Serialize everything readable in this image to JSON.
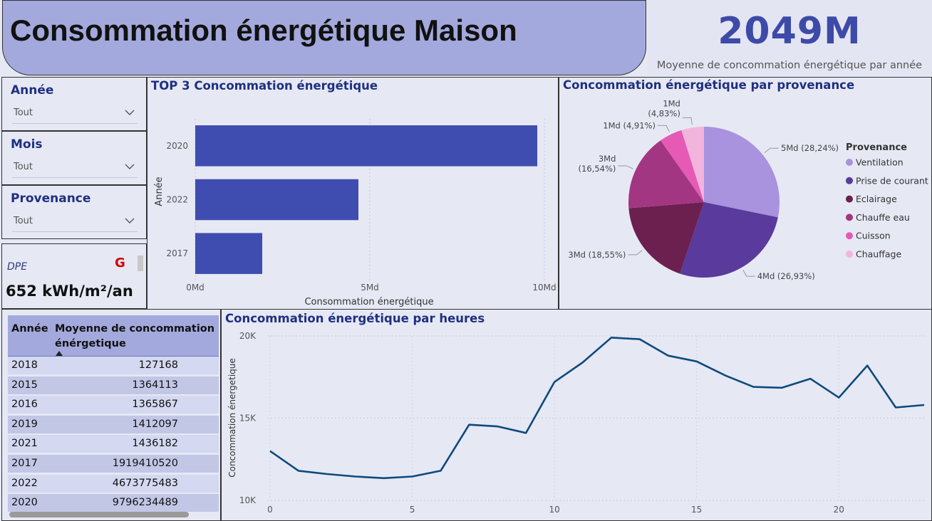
{
  "header": {
    "title": "Consommation énergétique Maison"
  },
  "kpi": {
    "value": "2049M",
    "label": "Moyenne de concommation énergétique par année"
  },
  "slicers": [
    {
      "title": "Année",
      "value": "Tout"
    },
    {
      "title": "Mois",
      "value": "Tout"
    },
    {
      "title": "Provenance",
      "value": "Tout"
    }
  ],
  "dpe": {
    "label": "DPE",
    "grade": "G",
    "value": "652 kWh/m²/an",
    "grade_color": "#d20000"
  },
  "table": {
    "headers": [
      "Année",
      "Moyenne de concommation énérgetique"
    ],
    "rows": [
      [
        "2018",
        "127168"
      ],
      [
        "2015",
        "1364113"
      ],
      [
        "2016",
        "1365867"
      ],
      [
        "2019",
        "1412097"
      ],
      [
        "2021",
        "1436182"
      ],
      [
        "2017",
        "1919410520"
      ],
      [
        "2022",
        "4673775483"
      ],
      [
        "2020",
        "9796234489"
      ]
    ]
  },
  "chart_data": [
    {
      "type": "bar",
      "orientation": "horizontal",
      "title": "TOP 3 Concommation énergétique",
      "categories": [
        "2020",
        "2022",
        "2017"
      ],
      "values": [
        9796234489,
        4673775483,
        1919410520
      ],
      "xlabel": "Consommation énergétique",
      "ylabel": "Année",
      "xlim": [
        0,
        10000000000
      ],
      "xticks": [
        "0Md",
        "5Md",
        "10Md"
      ],
      "color": "#3f4db0"
    },
    {
      "type": "pie",
      "title": "Concommation énergétique par provenance",
      "legend_title": "Provenance",
      "legend_position": "right",
      "slices": [
        {
          "name": "Ventilation",
          "label": "5Md (28,24%)",
          "percent": 28.24,
          "color": "#a992de"
        },
        {
          "name": "Prise de courant",
          "label": "4Md (26,93%)",
          "percent": 26.93,
          "color": "#5a3a9c"
        },
        {
          "name": "Eclairage",
          "label": "3Md (18,55%)",
          "percent": 18.55,
          "color": "#6b2050"
        },
        {
          "name": "Chauffe eau",
          "label": "3Md (16,54%)",
          "percent": 16.54,
          "color": "#a33682"
        },
        {
          "name": "Cuisson",
          "label": "1Md (4,91%)",
          "percent": 4.91,
          "color": "#e45ab4"
        },
        {
          "name": "Chauffage",
          "label": "1Md (4,83%)",
          "percent": 4.83,
          "color": "#f2b4dc"
        }
      ]
    },
    {
      "type": "line",
      "title": "Concommation énergétique par heures",
      "ylabel": "Concommation énergetique",
      "x": [
        0,
        1,
        2,
        3,
        4,
        5,
        6,
        7,
        8,
        9,
        10,
        11,
        12,
        13,
        14,
        15,
        16,
        17,
        18,
        19,
        20,
        21,
        22,
        23
      ],
      "y": [
        13000,
        11800,
        11600,
        11450,
        11350,
        11450,
        11800,
        14600,
        14500,
        14100,
        17200,
        18400,
        19900,
        19800,
        18800,
        18450,
        17600,
        16900,
        16850,
        17400,
        16250,
        18200,
        15650,
        15800
      ],
      "xlim": [
        0,
        23
      ],
      "ylim": [
        10000,
        20000
      ],
      "xticks": [
        "0",
        "5",
        "10",
        "15",
        "20"
      ],
      "yticks": [
        "10K",
        "15K",
        "20K"
      ],
      "grid": true,
      "color": "#0e4a7c"
    }
  ]
}
